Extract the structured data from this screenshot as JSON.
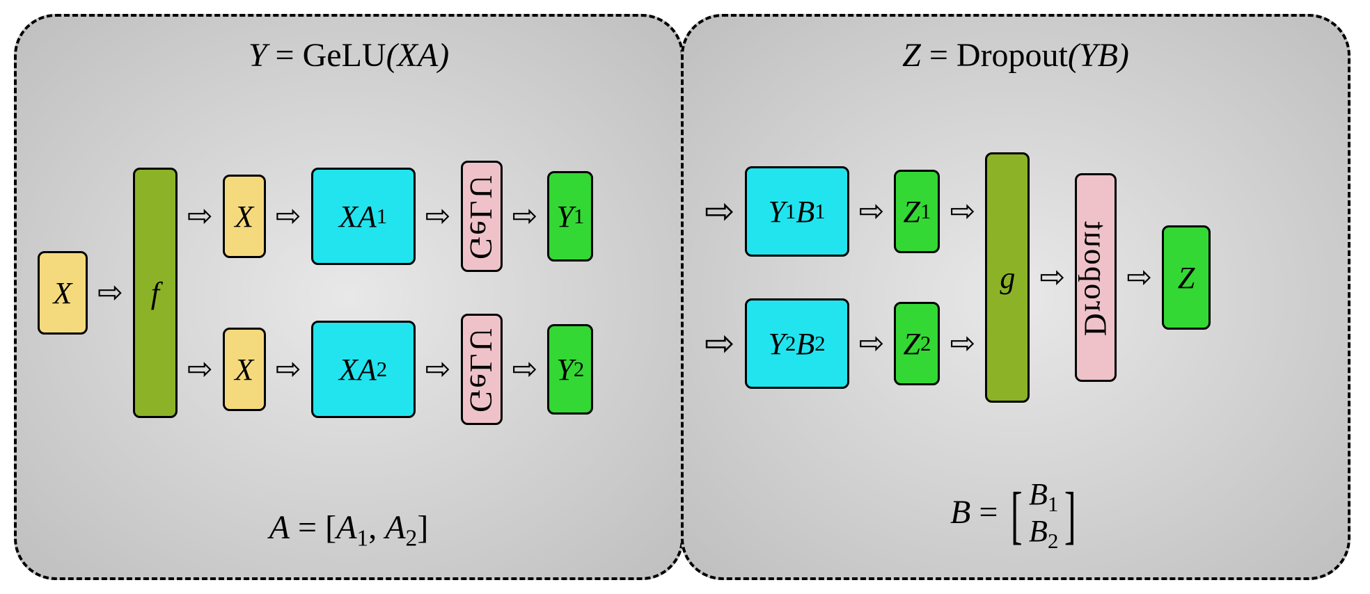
{
  "diagram": {
    "type": "flowchart",
    "colors": {
      "yellow": "#f5da7d",
      "olive": "#8cb328",
      "cyan": "#22e4ee",
      "pink": "#efc2c9",
      "green": "#34d834",
      "panel_border": "#000000",
      "panel_bg_center": "#e8e8e8",
      "panel_bg_edge": "#bfbfbf",
      "node_border": "#000000"
    },
    "border_radius_panel": 60,
    "border_dash": true,
    "arrow_glyph": "⇨",
    "left_panel": {
      "top_formula": {
        "lhs": "Y",
        "eq": " = ",
        "fn": "GeLU",
        "arg": "(XA)"
      },
      "bottom_formula": {
        "lhs": "A",
        "eq": " = [",
        "a1": "A",
        "s1": "1",
        "comma": ", ",
        "a2": "A",
        "s2": "2",
        "close": "]"
      },
      "nodes": {
        "x_in": "X",
        "f_label": "f",
        "x_top": "X",
        "x_bot": "X",
        "xa1": {
          "t": "XA",
          "s": "1"
        },
        "xa2": {
          "t": "XA",
          "s": "2"
        },
        "gelu": "GeLU",
        "y1": {
          "t": "Y",
          "s": "1"
        },
        "y2": {
          "t": "Y",
          "s": "2"
        }
      }
    },
    "right_panel": {
      "top_formula": {
        "lhs": "Z",
        "eq": " = ",
        "fn": "Dropout",
        "arg": "(YB)"
      },
      "bottom_formula": {
        "lhs": "B",
        "eq": " = ",
        "b1": "B",
        "s1": "1",
        "b2": "B",
        "s2": "2"
      },
      "nodes": {
        "y1b1": {
          "t1": "Y",
          "s1": "1",
          "t2": "B",
          "s2": "1"
        },
        "y2b2": {
          "t1": "Y",
          "s1": "2",
          "t2": "B",
          "s2": "2"
        },
        "z1": {
          "t": "Z",
          "s": "1"
        },
        "z2": {
          "t": "Z",
          "s": "2"
        },
        "g_label": "g",
        "dropout": "Dropout",
        "z_out": "Z"
      }
    },
    "layout": {
      "total_w": 1920,
      "total_h": 814,
      "node_border_w": 3,
      "node_radius": 10,
      "font_size_node": 44,
      "font_size_formula": 48,
      "tall_h": 360,
      "split_gap": 60
    }
  }
}
